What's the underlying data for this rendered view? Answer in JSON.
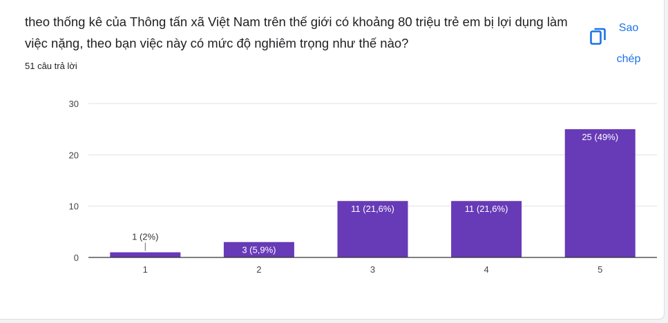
{
  "question": {
    "title": "theo thống kê của Thông tấn xã Việt Nam trên thế giới có khoảng 80 triệu trẻ em bị lợi dụng làm việc nặng, theo bạn việc này có mức độ nghiêm trọng như thế nào?",
    "response_count": "51 câu trả lời"
  },
  "copy_button": {
    "label": "Sao chép",
    "icon": "copy-icon"
  },
  "colors": {
    "bar": "#673ab7",
    "accent": "#1a73e8",
    "grid": "#e0e0e0",
    "axis": "#333333"
  },
  "chart_data": {
    "type": "bar",
    "categories": [
      "1",
      "2",
      "3",
      "4",
      "5"
    ],
    "values": [
      1,
      3,
      11,
      11,
      25
    ],
    "data_labels": [
      "1 (2%)",
      "3 (5,9%)",
      "11 (21,6%)",
      "11 (21,6%)",
      "25 (49%)"
    ],
    "ylim": [
      0,
      30
    ],
    "yticks": [
      0,
      10,
      20,
      30
    ],
    "grid": true,
    "legend": "none"
  }
}
